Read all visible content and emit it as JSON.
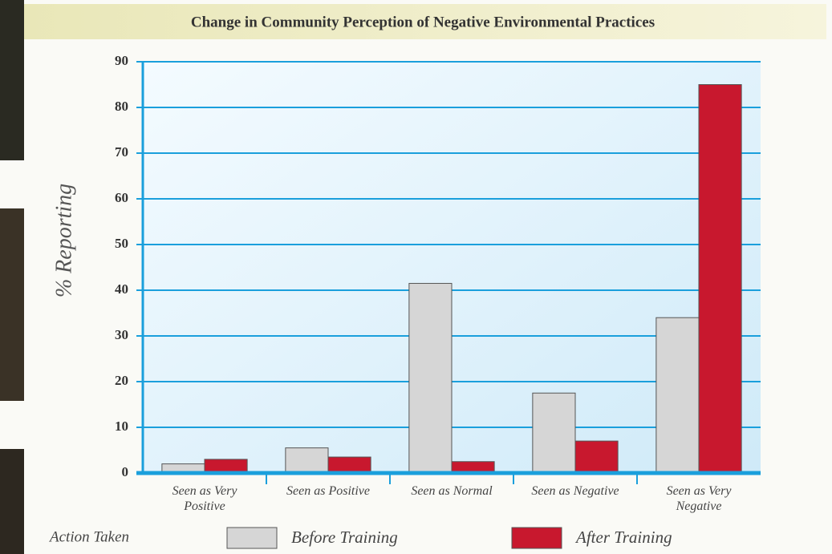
{
  "chart_data": {
    "type": "bar",
    "title": "Change in Community Perception of Negative Environmental Practices",
    "y_label": "% Reporting",
    "x_label": "Action Taken",
    "categories": [
      "Seen as Very Positive",
      "Seen as Positive",
      "Seen as Normal",
      "Seen as Negative",
      "Seen as Very Negative"
    ],
    "series": [
      {
        "name": "Before Training",
        "color": "#d6d6d6",
        "values": [
          2,
          5.5,
          41.5,
          17.5,
          34
        ]
      },
      {
        "name": "After Training",
        "color": "#c8182e",
        "values": [
          3,
          3.5,
          2.5,
          7,
          85
        ]
      }
    ],
    "ylim": [
      0,
      90
    ],
    "yticks": [
      0,
      10,
      20,
      30,
      40,
      50,
      60,
      70,
      80,
      90
    ],
    "grid": true
  }
}
